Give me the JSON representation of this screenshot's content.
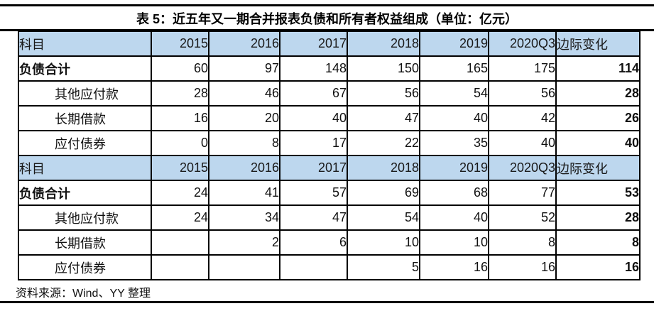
{
  "page": {
    "title": "表 5：近五年又一期合并报表负债和所有者权益组成（单位：亿元）",
    "source": "资料来源：Wind、YY 整理"
  },
  "colors": {
    "header_background": "#BDD7EE",
    "border": "#000000",
    "text": "#111111"
  },
  "table": {
    "columns": [
      "科目",
      "2015",
      "2016",
      "2017",
      "2018",
      "2019",
      "2020Q3",
      "边际变化"
    ],
    "sections": [
      {
        "rows": [
          {
            "label": "负债合计",
            "bold": true,
            "indent": false,
            "values": [
              "60",
              "97",
              "148",
              "150",
              "165",
              "175"
            ],
            "marginal": "114"
          },
          {
            "label": "其他应付款",
            "bold": false,
            "indent": true,
            "values": [
              "28",
              "46",
              "67",
              "56",
              "54",
              "56"
            ],
            "marginal": "28"
          },
          {
            "label": "长期借款",
            "bold": false,
            "indent": true,
            "values": [
              "16",
              "20",
              "40",
              "47",
              "40",
              "42"
            ],
            "marginal": "26"
          },
          {
            "label": "应付债券",
            "bold": false,
            "indent": true,
            "values": [
              "0",
              "8",
              "17",
              "22",
              "35",
              "40"
            ],
            "marginal": "40"
          }
        ]
      },
      {
        "rows": [
          {
            "label": "负债合计",
            "bold": true,
            "indent": false,
            "values": [
              "24",
              "41",
              "57",
              "69",
              "68",
              "77"
            ],
            "marginal": "53"
          },
          {
            "label": "其他应付款",
            "bold": false,
            "indent": true,
            "values": [
              "24",
              "34",
              "47",
              "54",
              "40",
              "52"
            ],
            "marginal": "28"
          },
          {
            "label": "长期借款",
            "bold": false,
            "indent": true,
            "values": [
              "",
              "2",
              "6",
              "10",
              "10",
              "8"
            ],
            "marginal": "8"
          },
          {
            "label": "应付债券",
            "bold": false,
            "indent": true,
            "values": [
              "",
              "",
              "",
              "5",
              "16",
              "16"
            ],
            "marginal": "16"
          }
        ]
      }
    ]
  }
}
